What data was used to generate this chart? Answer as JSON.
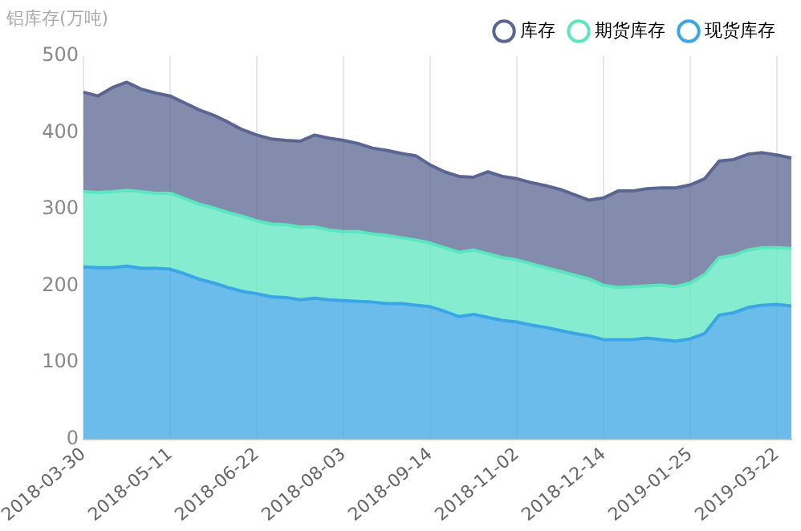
{
  "chart_data": {
    "type": "area",
    "stacked": true,
    "ylabel": "铝库存(万吨)",
    "categories": [
      "2018-03-30",
      null,
      null,
      null,
      null,
      null,
      "2018-05-11",
      null,
      null,
      null,
      null,
      null,
      "2018-06-22",
      null,
      null,
      null,
      null,
      null,
      "2018-08-03",
      null,
      null,
      null,
      null,
      null,
      "2018-09-14",
      null,
      null,
      null,
      null,
      null,
      "2018-11-02",
      null,
      null,
      null,
      null,
      null,
      "2018-12-14",
      null,
      null,
      null,
      null,
      null,
      "2019-01-25",
      null,
      null,
      null,
      null,
      null,
      "2019-03-22",
      null
    ],
    "series": [
      {
        "name": "现货库存",
        "color": "#3aa6e4",
        "values": [
          225,
          224,
          224,
          226,
          223,
          223,
          222,
          216,
          209,
          204,
          198,
          193,
          190,
          186,
          185,
          182,
          184,
          182,
          181,
          180,
          179,
          177,
          177,
          175,
          173,
          167,
          160,
          163,
          159,
          155,
          153,
          149,
          146,
          142,
          138,
          135,
          130,
          130,
          130,
          132,
          130,
          128,
          131,
          138,
          162,
          165,
          172,
          175,
          176,
          174
        ]
      },
      {
        "name": "期货库存",
        "color": "#5ce6c0",
        "values": [
          98,
          98,
          99,
          99,
          100,
          98,
          99,
          98,
          98,
          98,
          98,
          98,
          95,
          95,
          95,
          95,
          93,
          91,
          90,
          91,
          89,
          89,
          86,
          85,
          83,
          83,
          84,
          84,
          83,
          82,
          81,
          80,
          78,
          77,
          76,
          74,
          71,
          68,
          69,
          68,
          71,
          71,
          73,
          77,
          75,
          75,
          75,
          75,
          74,
          75
        ]
      },
      {
        "name": "库存",
        "color": "#5b6591",
        "values": [
          130,
          126,
          136,
          141,
          134,
          131,
          127,
          125,
          123,
          121,
          118,
          113,
          112,
          111,
          110,
          112,
          120,
          120,
          119,
          115,
          112,
          111,
          110,
          110,
          102,
          99,
          99,
          95,
          107,
          106,
          106,
          106,
          107,
          107,
          105,
          103,
          114,
          126,
          125,
          127,
          127,
          129,
          128,
          125,
          126,
          125,
          125,
          124,
          121,
          118
        ]
      }
    ],
    "ylim": [
      0,
      500
    ],
    "yticks": [
      0,
      100,
      200,
      300,
      400,
      500
    ],
    "grid": "x",
    "legend": "top right",
    "marker": "none"
  }
}
